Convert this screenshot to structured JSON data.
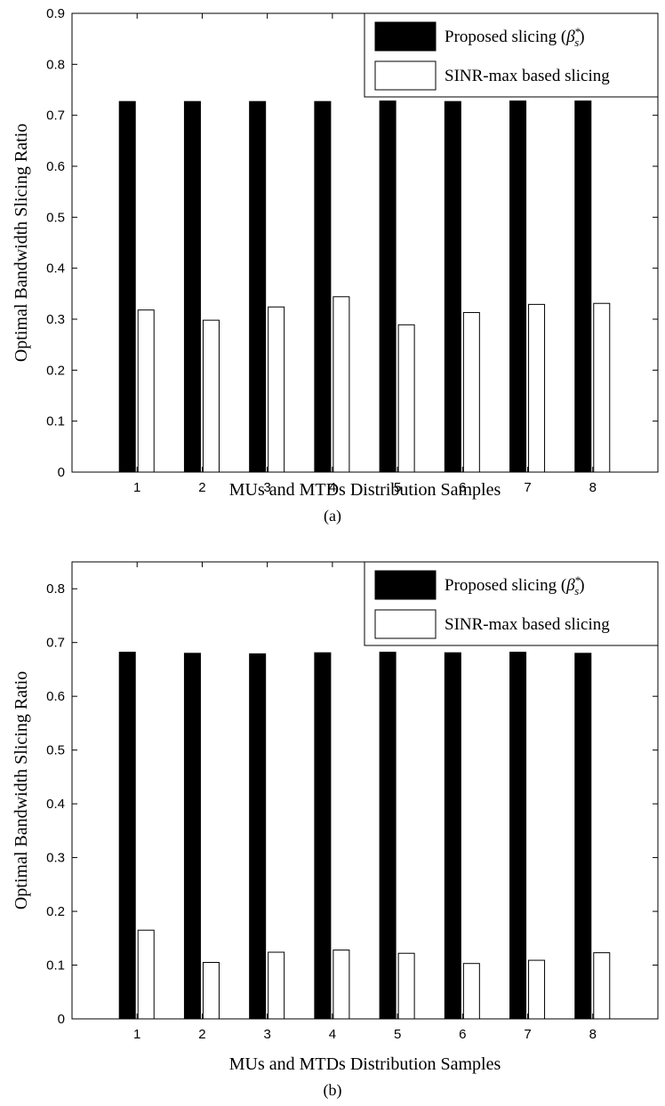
{
  "chart_data": [
    {
      "panel": "a",
      "type": "bar",
      "caption": "(a)",
      "xlabel": "MUs and MTDs Distribution Samples",
      "ylabel": "Optimal Bandwidth Slicing Ratio",
      "categories": [
        "1",
        "2",
        "3",
        "4",
        "5",
        "6",
        "7",
        "8"
      ],
      "ylim": [
        0,
        0.9
      ],
      "yticks": [
        "0",
        "0.1",
        "0.2",
        "0.3",
        "0.4",
        "0.5",
        "0.6",
        "0.7",
        "0.8",
        "0.9"
      ],
      "legend_position": "top-right",
      "series": [
        {
          "name": "Proposed slicing (β*s)",
          "color": "#000000",
          "values": [
            0.727,
            0.727,
            0.727,
            0.727,
            0.728,
            0.727,
            0.728,
            0.728
          ]
        },
        {
          "name": "SINR-max based slicing",
          "color": "#ffffff",
          "values": [
            0.318,
            0.298,
            0.324,
            0.344,
            0.289,
            0.313,
            0.329,
            0.331
          ]
        }
      ]
    },
    {
      "panel": "b",
      "type": "bar",
      "caption": "(b)",
      "xlabel": "MUs and MTDs Distribution Samples",
      "ylabel": "Optimal Bandwidth Slicing Ratio",
      "categories": [
        "1",
        "2",
        "3",
        "4",
        "5",
        "6",
        "7",
        "8"
      ],
      "ylim": [
        0,
        0.85
      ],
      "yticks": [
        "0",
        "0.1",
        "0.2",
        "0.3",
        "0.4",
        "0.5",
        "0.6",
        "0.7",
        "0.8"
      ],
      "legend_position": "top-right",
      "series": [
        {
          "name": "Proposed slicing (β*s)",
          "color": "#000000",
          "values": [
            0.682,
            0.68,
            0.679,
            0.681,
            0.682,
            0.681,
            0.682,
            0.68
          ]
        },
        {
          "name": "SINR-max based slicing",
          "color": "#ffffff",
          "values": [
            0.165,
            0.105,
            0.124,
            0.128,
            0.122,
            0.103,
            0.109,
            0.123
          ]
        }
      ]
    }
  ]
}
